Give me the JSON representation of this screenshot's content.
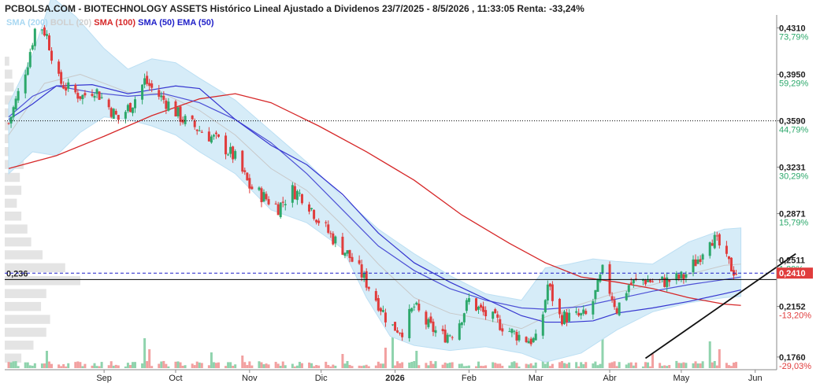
{
  "title": "PCBOLSA.COM - BIOTECHNOLOGY ASSETS Histórico Lineal Ajustado a Dividenos 23/7/2025 - 8/5/2026 , 11:33:05 Renta: -33,24%",
  "legend": [
    {
      "label": "SMA (200)",
      "color": "#a9d8f2"
    },
    {
      "label": "BOLL (20)",
      "color": "#cfcfcf"
    },
    {
      "label": "SMA (100)",
      "color": "#d62728"
    },
    {
      "label": "SMA (50)",
      "color": "#1f1fc8"
    },
    {
      "label": "EMA (50)",
      "color": "#1f1fc8"
    }
  ],
  "colors": {
    "up": "#2ca86b",
    "down": "#e03c3c",
    "volume_up": "#8fd3ad",
    "volume_down": "#f2a0a0",
    "sma100": "#d62728",
    "sma50": "#3535d0",
    "ema50": "#3535d0",
    "boll_fill": "#d6ecf8",
    "boll_mid": "#c8c8c8",
    "positive_pct": "#2ca86b",
    "negative_pct": "#e03c3c",
    "current_price_box": "#e03c3c"
  },
  "chart_data": {
    "type": "candlestick",
    "y_ticks": [
      {
        "price": "0,4310",
        "pct": "73,79%",
        "value": 0.431
      },
      {
        "price": "0,3950",
        "pct": "59,29%",
        "value": 0.395
      },
      {
        "price": "0,3590",
        "pct": "44,79%",
        "value": 0.359
      },
      {
        "price": "0,3231",
        "pct": "30,29%",
        "value": 0.3231
      },
      {
        "price": "0,2871",
        "pct": "15,79%",
        "value": 0.2871
      },
      {
        "price": "0,2511",
        "pct": "1,29%",
        "value": 0.2511
      },
      {
        "price": "0,2152",
        "pct": "-13,20%",
        "value": 0.2152
      },
      {
        "price": "0,1760",
        "pct": "-29,03%",
        "value": 0.176
      }
    ],
    "x_labels": [
      {
        "label": "Sep",
        "day": 40,
        "bold": false
      },
      {
        "label": "Oct",
        "day": 70,
        "bold": false
      },
      {
        "label": "Nov",
        "day": 101,
        "bold": false
      },
      {
        "label": "Dic",
        "day": 131,
        "bold": false
      },
      {
        "label": "2026",
        "day": 162,
        "bold": true
      },
      {
        "label": "Feb",
        "day": 193,
        "bold": false
      },
      {
        "label": "Mar",
        "day": 221,
        "bold": false
      },
      {
        "label": "Abr",
        "day": 252,
        "bold": false
      },
      {
        "label": "May",
        "day": 282,
        "bold": false
      },
      {
        "label": "Jun",
        "day": 313,
        "bold": false
      }
    ],
    "ylim": [
      0.168,
      0.441
    ],
    "xlim_days": [
      -1,
      322
    ],
    "reference_price": 0.359,
    "reference_label": "0,236",
    "reference_label_value": 0.236,
    "current_price": "0,2410",
    "current_price_value": 0.241,
    "trendline": {
      "x1_day": 267,
      "y1": 0.175,
      "x2_day": 330,
      "y2": 0.256
    },
    "anchors": [
      {
        "d": 0,
        "c": 0.357
      },
      {
        "d": 4,
        "c": 0.38
      },
      {
        "d": 8,
        "c": 0.405
      },
      {
        "d": 12,
        "c": 0.438
      },
      {
        "d": 16,
        "c": 0.425
      },
      {
        "d": 21,
        "c": 0.39
      },
      {
        "d": 26,
        "c": 0.382
      },
      {
        "d": 31,
        "c": 0.378
      },
      {
        "d": 36,
        "c": 0.384
      },
      {
        "d": 41,
        "c": 0.372
      },
      {
        "d": 46,
        "c": 0.36
      },
      {
        "d": 52,
        "c": 0.373
      },
      {
        "d": 57,
        "c": 0.39
      },
      {
        "d": 62,
        "c": 0.38
      },
      {
        "d": 67,
        "c": 0.372
      },
      {
        "d": 73,
        "c": 0.36
      },
      {
        "d": 80,
        "c": 0.352
      },
      {
        "d": 88,
        "c": 0.343
      },
      {
        "d": 95,
        "c": 0.33
      },
      {
        "d": 101,
        "c": 0.308
      },
      {
        "d": 107,
        "c": 0.3
      },
      {
        "d": 113,
        "c": 0.292
      },
      {
        "d": 119,
        "c": 0.305
      },
      {
        "d": 124,
        "c": 0.3
      },
      {
        "d": 130,
        "c": 0.282
      },
      {
        "d": 136,
        "c": 0.268
      },
      {
        "d": 142,
        "c": 0.256
      },
      {
        "d": 148,
        "c": 0.24
      },
      {
        "d": 155,
        "c": 0.218
      },
      {
        "d": 160,
        "c": 0.2
      },
      {
        "d": 165,
        "c": 0.197
      },
      {
        "d": 170,
        "c": 0.215
      },
      {
        "d": 176,
        "c": 0.2
      },
      {
        "d": 182,
        "c": 0.192
      },
      {
        "d": 187,
        "c": 0.196
      },
      {
        "d": 193,
        "c": 0.22
      },
      {
        "d": 199,
        "c": 0.21
      },
      {
        "d": 205,
        "c": 0.203
      },
      {
        "d": 211,
        "c": 0.195
      },
      {
        "d": 217,
        "c": 0.19
      },
      {
        "d": 222,
        "c": 0.188
      },
      {
        "d": 226,
        "c": 0.232
      },
      {
        "d": 231,
        "c": 0.207
      },
      {
        "d": 237,
        "c": 0.207
      },
      {
        "d": 243,
        "c": 0.208
      },
      {
        "d": 249,
        "c": 0.242
      },
      {
        "d": 255,
        "c": 0.213
      },
      {
        "d": 260,
        "c": 0.232
      },
      {
        "d": 266,
        "c": 0.236
      },
      {
        "d": 272,
        "c": 0.234
      },
      {
        "d": 277,
        "c": 0.235
      },
      {
        "d": 283,
        "c": 0.238
      },
      {
        "d": 289,
        "c": 0.252
      },
      {
        "d": 294,
        "c": 0.27
      },
      {
        "d": 298,
        "c": 0.262
      },
      {
        "d": 301,
        "c": 0.25
      },
      {
        "d": 304,
        "c": 0.243
      },
      {
        "d": 306,
        "c": 0.241
      }
    ],
    "sma100": [
      {
        "d": 0,
        "v": 0.322
      },
      {
        "d": 20,
        "v": 0.332
      },
      {
        "d": 40,
        "v": 0.347
      },
      {
        "d": 60,
        "v": 0.363
      },
      {
        "d": 80,
        "v": 0.376
      },
      {
        "d": 95,
        "v": 0.38
      },
      {
        "d": 110,
        "v": 0.373
      },
      {
        "d": 130,
        "v": 0.355
      },
      {
        "d": 150,
        "v": 0.335
      },
      {
        "d": 170,
        "v": 0.313
      },
      {
        "d": 190,
        "v": 0.286
      },
      {
        "d": 210,
        "v": 0.264
      },
      {
        "d": 225,
        "v": 0.249
      },
      {
        "d": 240,
        "v": 0.238
      },
      {
        "d": 255,
        "v": 0.234
      },
      {
        "d": 270,
        "v": 0.229
      },
      {
        "d": 285,
        "v": 0.222
      },
      {
        "d": 300,
        "v": 0.217
      },
      {
        "d": 307,
        "v": 0.216
      }
    ],
    "sma50": [
      {
        "d": 0,
        "v": 0.36
      },
      {
        "d": 10,
        "v": 0.372
      },
      {
        "d": 20,
        "v": 0.386
      },
      {
        "d": 35,
        "v": 0.387
      },
      {
        "d": 50,
        "v": 0.38
      },
      {
        "d": 60,
        "v": 0.383
      },
      {
        "d": 70,
        "v": 0.386
      },
      {
        "d": 80,
        "v": 0.384
      },
      {
        "d": 95,
        "v": 0.36
      },
      {
        "d": 110,
        "v": 0.34
      },
      {
        "d": 125,
        "v": 0.325
      },
      {
        "d": 140,
        "v": 0.302
      },
      {
        "d": 155,
        "v": 0.272
      },
      {
        "d": 170,
        "v": 0.249
      },
      {
        "d": 185,
        "v": 0.234
      },
      {
        "d": 200,
        "v": 0.221
      },
      {
        "d": 215,
        "v": 0.208
      },
      {
        "d": 225,
        "v": 0.203
      },
      {
        "d": 235,
        "v": 0.203
      },
      {
        "d": 245,
        "v": 0.204
      },
      {
        "d": 255,
        "v": 0.21
      },
      {
        "d": 270,
        "v": 0.214
      },
      {
        "d": 285,
        "v": 0.219
      },
      {
        "d": 300,
        "v": 0.225
      },
      {
        "d": 307,
        "v": 0.228
      }
    ],
    "ema50": [
      {
        "d": 0,
        "v": 0.362
      },
      {
        "d": 10,
        "v": 0.378
      },
      {
        "d": 20,
        "v": 0.386
      },
      {
        "d": 35,
        "v": 0.381
      },
      {
        "d": 50,
        "v": 0.378
      },
      {
        "d": 65,
        "v": 0.38
      },
      {
        "d": 80,
        "v": 0.373
      },
      {
        "d": 95,
        "v": 0.36
      },
      {
        "d": 110,
        "v": 0.342
      },
      {
        "d": 125,
        "v": 0.318
      },
      {
        "d": 140,
        "v": 0.29
      },
      {
        "d": 155,
        "v": 0.262
      },
      {
        "d": 170,
        "v": 0.243
      },
      {
        "d": 185,
        "v": 0.229
      },
      {
        "d": 200,
        "v": 0.22
      },
      {
        "d": 215,
        "v": 0.214
      },
      {
        "d": 225,
        "v": 0.213
      },
      {
        "d": 240,
        "v": 0.215
      },
      {
        "d": 255,
        "v": 0.221
      },
      {
        "d": 270,
        "v": 0.227
      },
      {
        "d": 285,
        "v": 0.232
      },
      {
        "d": 300,
        "v": 0.236
      },
      {
        "d": 307,
        "v": 0.238
      }
    ],
    "boll_upper": [
      {
        "d": 0,
        "v": 0.372
      },
      {
        "d": 10,
        "v": 0.41
      },
      {
        "d": 18,
        "v": 0.455
      },
      {
        "d": 28,
        "v": 0.44
      },
      {
        "d": 40,
        "v": 0.415
      },
      {
        "d": 50,
        "v": 0.399
      },
      {
        "d": 60,
        "v": 0.407
      },
      {
        "d": 70,
        "v": 0.404
      },
      {
        "d": 80,
        "v": 0.392
      },
      {
        "d": 95,
        "v": 0.375
      },
      {
        "d": 110,
        "v": 0.351
      },
      {
        "d": 125,
        "v": 0.327
      },
      {
        "d": 140,
        "v": 0.3
      },
      {
        "d": 155,
        "v": 0.275
      },
      {
        "d": 170,
        "v": 0.256
      },
      {
        "d": 185,
        "v": 0.239
      },
      {
        "d": 200,
        "v": 0.225
      },
      {
        "d": 215,
        "v": 0.22
      },
      {
        "d": 225,
        "v": 0.245
      },
      {
        "d": 235,
        "v": 0.248
      },
      {
        "d": 245,
        "v": 0.252
      },
      {
        "d": 255,
        "v": 0.25
      },
      {
        "d": 270,
        "v": 0.248
      },
      {
        "d": 285,
        "v": 0.265
      },
      {
        "d": 300,
        "v": 0.275
      },
      {
        "d": 307,
        "v": 0.276
      }
    ],
    "boll_mid": [
      {
        "d": 0,
        "v": 0.348
      },
      {
        "d": 15,
        "v": 0.388
      },
      {
        "d": 30,
        "v": 0.395
      },
      {
        "d": 50,
        "v": 0.381
      },
      {
        "d": 65,
        "v": 0.38
      },
      {
        "d": 80,
        "v": 0.367
      },
      {
        "d": 95,
        "v": 0.348
      },
      {
        "d": 110,
        "v": 0.322
      },
      {
        "d": 125,
        "v": 0.305
      },
      {
        "d": 140,
        "v": 0.278
      },
      {
        "d": 155,
        "v": 0.248
      },
      {
        "d": 170,
        "v": 0.222
      },
      {
        "d": 185,
        "v": 0.21
      },
      {
        "d": 200,
        "v": 0.205
      },
      {
        "d": 215,
        "v": 0.198
      },
      {
        "d": 225,
        "v": 0.207
      },
      {
        "d": 240,
        "v": 0.217
      },
      {
        "d": 255,
        "v": 0.226
      },
      {
        "d": 270,
        "v": 0.232
      },
      {
        "d": 285,
        "v": 0.24
      },
      {
        "d": 300,
        "v": 0.247
      },
      {
        "d": 307,
        "v": 0.248
      }
    ],
    "boll_lower": [
      {
        "d": 0,
        "v": 0.318
      },
      {
        "d": 10,
        "v": 0.335
      },
      {
        "d": 20,
        "v": 0.332
      },
      {
        "d": 30,
        "v": 0.35
      },
      {
        "d": 40,
        "v": 0.362
      },
      {
        "d": 50,
        "v": 0.36
      },
      {
        "d": 60,
        "v": 0.355
      },
      {
        "d": 70,
        "v": 0.348
      },
      {
        "d": 80,
        "v": 0.335
      },
      {
        "d": 95,
        "v": 0.318
      },
      {
        "d": 110,
        "v": 0.29
      },
      {
        "d": 125,
        "v": 0.28
      },
      {
        "d": 140,
        "v": 0.26
      },
      {
        "d": 150,
        "v": 0.222
      },
      {
        "d": 160,
        "v": 0.192
      },
      {
        "d": 170,
        "v": 0.185
      },
      {
        "d": 185,
        "v": 0.181
      },
      {
        "d": 200,
        "v": 0.184
      },
      {
        "d": 215,
        "v": 0.179
      },
      {
        "d": 225,
        "v": 0.172
      },
      {
        "d": 240,
        "v": 0.179
      },
      {
        "d": 255,
        "v": 0.197
      },
      {
        "d": 270,
        "v": 0.211
      },
      {
        "d": 285,
        "v": 0.218
      },
      {
        "d": 300,
        "v": 0.222
      },
      {
        "d": 307,
        "v": 0.223
      }
    ],
    "volume_profile": [
      {
        "price": 0.175,
        "w": 0.22
      },
      {
        "price": 0.185,
        "w": 0.38
      },
      {
        "price": 0.195,
        "w": 0.55
      },
      {
        "price": 0.205,
        "w": 0.6
      },
      {
        "price": 0.215,
        "w": 0.48
      },
      {
        "price": 0.225,
        "w": 0.55
      },
      {
        "price": 0.235,
        "w": 1.0
      },
      {
        "price": 0.245,
        "w": 0.8
      },
      {
        "price": 0.255,
        "w": 0.5
      },
      {
        "price": 0.265,
        "w": 0.35
      },
      {
        "price": 0.275,
        "w": 0.3
      },
      {
        "price": 0.285,
        "w": 0.22
      },
      {
        "price": 0.295,
        "w": 0.16
      },
      {
        "price": 0.305,
        "w": 0.22
      },
      {
        "price": 0.315,
        "w": 0.2
      },
      {
        "price": 0.325,
        "w": 0.25
      },
      {
        "price": 0.335,
        "w": 0.18
      },
      {
        "price": 0.345,
        "w": 0.22
      },
      {
        "price": 0.355,
        "w": 0.2
      },
      {
        "price": 0.365,
        "w": 0.18
      },
      {
        "price": 0.375,
        "w": 0.15
      },
      {
        "price": 0.385,
        "w": 0.12
      },
      {
        "price": 0.395,
        "w": 0.1
      },
      {
        "price": 0.405,
        "w": 0.06
      }
    ],
    "volume_spikes": [
      {
        "d": 12,
        "v": 0.85
      },
      {
        "d": 13,
        "v": 0.95
      },
      {
        "d": 16,
        "v": 0.55
      },
      {
        "d": 57,
        "v": 0.95
      },
      {
        "d": 59,
        "v": 0.6
      },
      {
        "d": 85,
        "v": 0.5
      },
      {
        "d": 98,
        "v": 0.4
      },
      {
        "d": 140,
        "v": 0.45
      },
      {
        "d": 158,
        "v": 0.65
      },
      {
        "d": 161,
        "v": 1.0
      },
      {
        "d": 171,
        "v": 0.55
      },
      {
        "d": 226,
        "v": 0.95
      },
      {
        "d": 230,
        "v": 0.55
      },
      {
        "d": 249,
        "v": 0.95
      },
      {
        "d": 270,
        "v": 0.45
      },
      {
        "d": 294,
        "v": 0.85
      },
      {
        "d": 298,
        "v": 0.6
      }
    ]
  }
}
